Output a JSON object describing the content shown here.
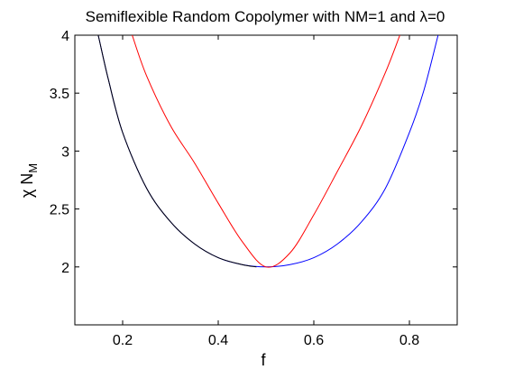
{
  "chart_data": {
    "type": "line",
    "title": "Semiflexible Random Copolymer with NM=1 and λ=0",
    "xlabel": "f",
    "ylabel": "χ N",
    "ylabel_subscript": "M",
    "xlim": [
      0.1,
      0.9
    ],
    "ylim": [
      1.5,
      4.0
    ],
    "x_ticks": [
      0.2,
      0.4,
      0.6,
      0.8
    ],
    "x_tick_labels": [
      "0.2",
      "0.4",
      "0.6",
      "0.8"
    ],
    "y_ticks": [
      2,
      2.5,
      3,
      3.5,
      4
    ],
    "y_tick_labels": [
      "2",
      "2.5",
      "3",
      "3.5",
      "4"
    ],
    "grid": false,
    "legend": "none",
    "series": [
      {
        "color": "#0000ff",
        "x": [
          0.14,
          0.15,
          0.17,
          0.2,
          0.25,
          0.3,
          0.35,
          0.4,
          0.45,
          0.5,
          0.55,
          0.6,
          0.65,
          0.7,
          0.75,
          0.8,
          0.83,
          0.86
        ],
        "y": [
          4.15,
          3.98,
          3.62,
          3.16,
          2.68,
          2.39,
          2.2,
          2.08,
          2.02,
          2.0,
          2.02,
          2.08,
          2.2,
          2.39,
          2.68,
          3.16,
          3.52,
          4.0
        ]
      },
      {
        "color": "#000000",
        "x": [
          0.14,
          0.15,
          0.17,
          0.2,
          0.25,
          0.3,
          0.35,
          0.4,
          0.45,
          0.48
        ],
        "y": [
          4.15,
          3.98,
          3.62,
          3.16,
          2.68,
          2.39,
          2.2,
          2.08,
          2.02,
          2.0
        ]
      },
      {
        "color": "#ff0000",
        "x": [
          0.22,
          0.25,
          0.3,
          0.35,
          0.4,
          0.45,
          0.5,
          0.55,
          0.6,
          0.65,
          0.7,
          0.75,
          0.78
        ],
        "y": [
          4.0,
          3.65,
          3.22,
          2.9,
          2.55,
          2.22,
          2.0,
          2.12,
          2.45,
          2.83,
          3.22,
          3.68,
          4.0
        ]
      }
    ]
  }
}
